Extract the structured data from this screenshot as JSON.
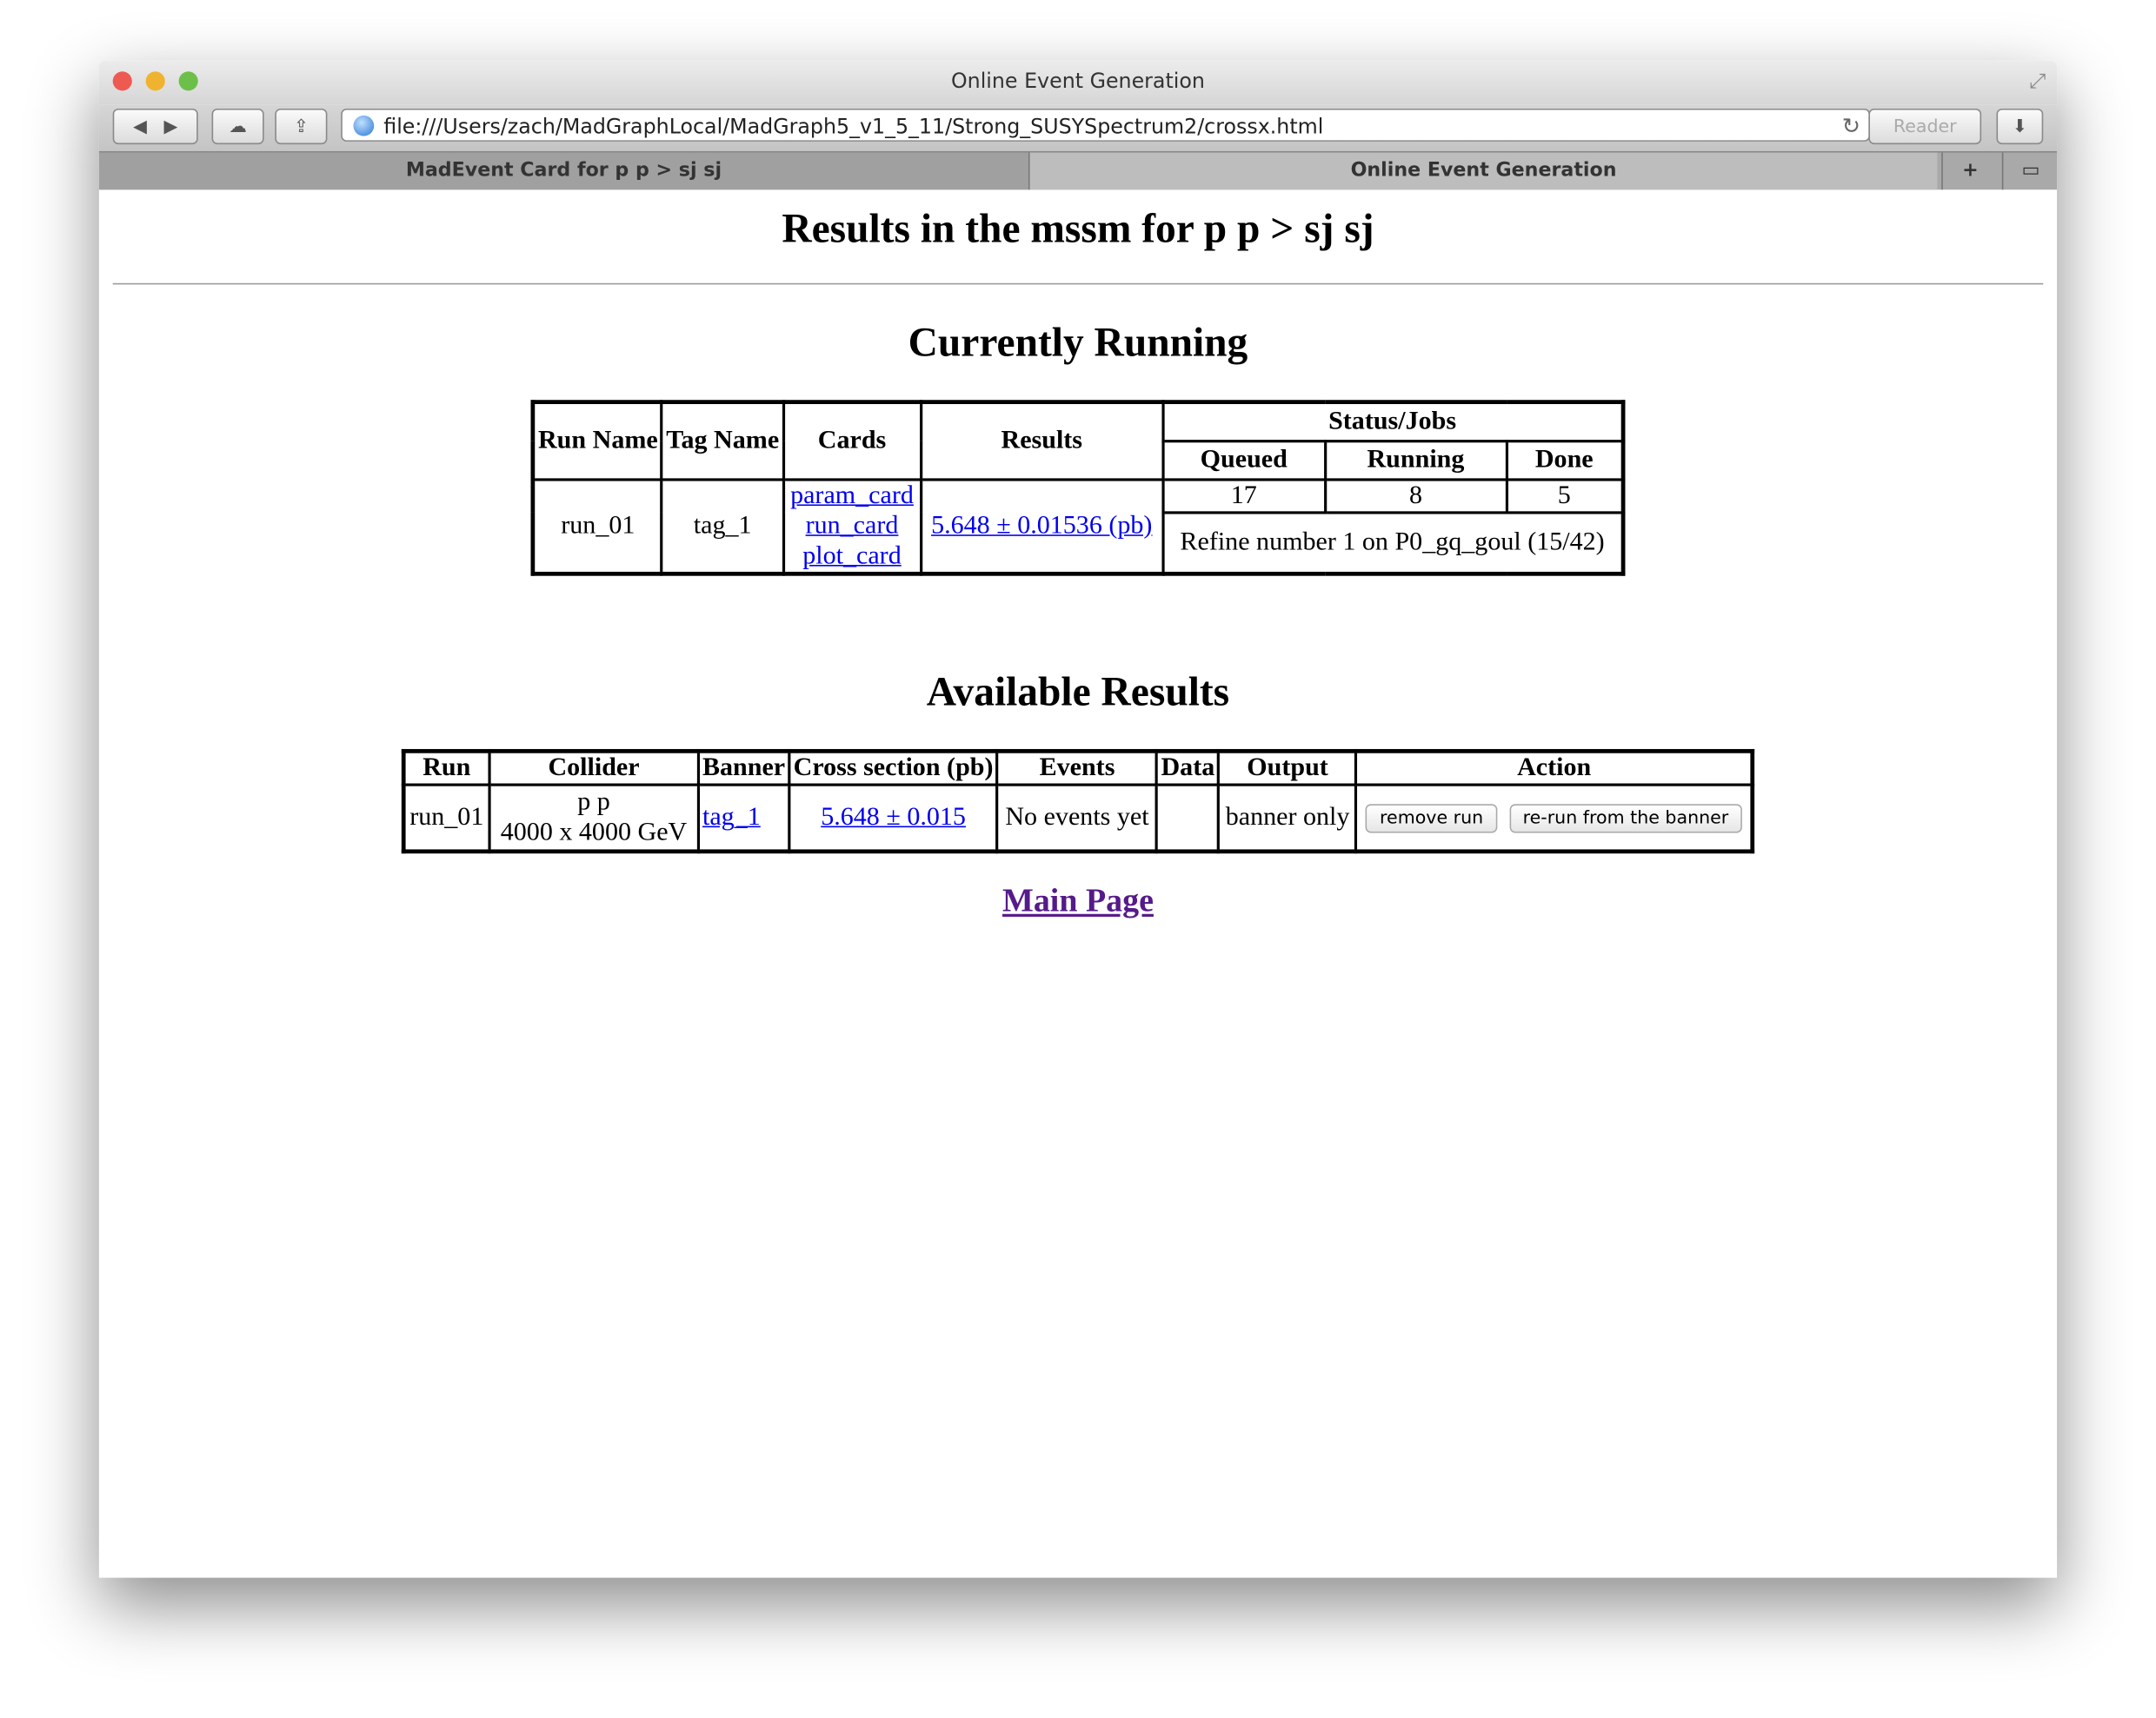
{
  "window": {
    "title": "Online Event Generation",
    "url": "file:///Users/zach/MadGraphLocal/MadGraph5_v1_5_11/Strong_SUSYSpectrum2/crossx.html",
    "reader_label": "Reader"
  },
  "tabs": [
    {
      "label": "MadEvent Card for p p > sj sj"
    },
    {
      "label": "Online Event Generation"
    }
  ],
  "page": {
    "title": "Results in the mssm for p p > sj sj",
    "running": {
      "heading": "Currently Running",
      "headers": {
        "run_name": "Run Name",
        "tag_name": "Tag Name",
        "cards": "Cards",
        "results": "Results",
        "status": "Status/Jobs",
        "queued": "Queued",
        "running": "Running",
        "done": "Done"
      },
      "row": {
        "run_name": "run_01",
        "tag_name": "tag_1",
        "cards": [
          "param_card",
          "run_card",
          "plot_card"
        ],
        "results": "5.648 ± 0.01536 (pb)",
        "queued": "17",
        "running": "8",
        "done": "5",
        "status_text": "Refine number 1 on P0_gq_goul (15/42)"
      }
    },
    "available": {
      "heading": "Available Results",
      "headers": [
        "Run",
        "Collider",
        "Banner",
        "Cross section (pb)",
        "Events",
        "Data",
        "Output",
        "Action"
      ],
      "row": {
        "run": "run_01",
        "collider_beams": "p p",
        "collider_energy": "4000 x 4000 GeV",
        "banner": "tag_1",
        "cross_section": "5.648 ± 0.015",
        "events": "No events yet",
        "data": "",
        "output": "banner only",
        "actions": [
          "remove run",
          "re-run from the banner"
        ]
      }
    },
    "main_link": "Main Page"
  }
}
